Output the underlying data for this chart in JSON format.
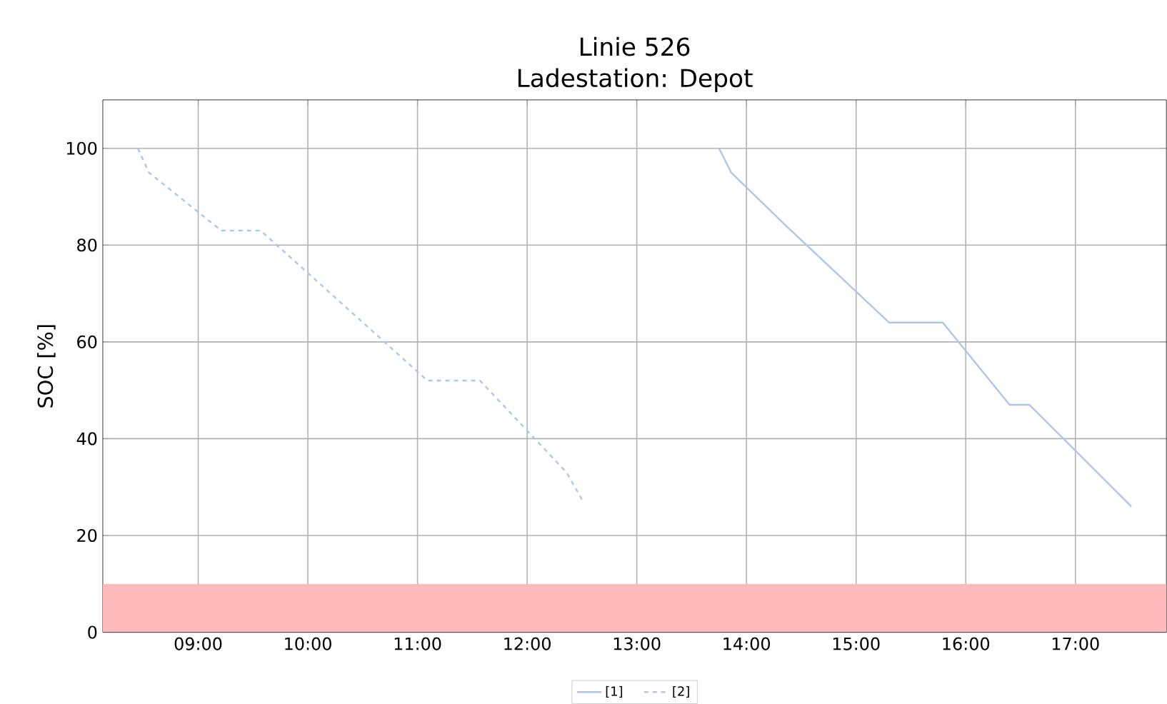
{
  "chart_data": {
    "type": "line",
    "title": "Linie 526",
    "subtitle": "Ladestation: Depot",
    "ylabel": "SOC [%]",
    "xlim": [
      8.13,
      17.83
    ],
    "ylim": [
      0,
      110
    ],
    "xticks": [
      {
        "value": 9,
        "label": "09:00"
      },
      {
        "value": 10,
        "label": "10:00"
      },
      {
        "value": 11,
        "label": "11:00"
      },
      {
        "value": 12,
        "label": "12:00"
      },
      {
        "value": 13,
        "label": "13:00"
      },
      {
        "value": 14,
        "label": "14:00"
      },
      {
        "value": 15,
        "label": "15:00"
      },
      {
        "value": 16,
        "label": "16:00"
      },
      {
        "value": 17,
        "label": "17:00"
      }
    ],
    "yticks": [
      0,
      20,
      40,
      60,
      80,
      100
    ],
    "grid": true,
    "legend": "bottom",
    "bands": [
      {
        "axis": "y",
        "from": 0,
        "to": 10,
        "color": "#ffbbbb"
      }
    ],
    "series": [
      {
        "name": "[1]",
        "color": "#aec7e8",
        "line_style": "solid",
        "x": [
          13.75,
          13.86,
          14.36,
          15.3,
          15.79,
          16.4,
          16.58,
          17.51
        ],
        "values": [
          100,
          95,
          84,
          64,
          64,
          47,
          47,
          26
        ]
      },
      {
        "name": "[2]",
        "color": "#aec7e8",
        "line_style": "dashed",
        "x": [
          8.45,
          8.55,
          9.21,
          9.57,
          11.09,
          11.57,
          12.36,
          12.51
        ],
        "values": [
          100,
          95,
          83,
          83,
          52,
          52,
          33,
          27
        ]
      }
    ]
  }
}
